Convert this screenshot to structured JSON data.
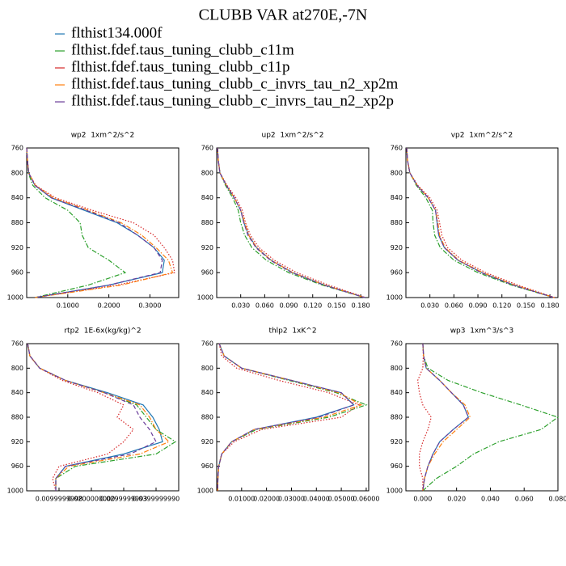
{
  "title": "CLUBB VAR at270E,-7N",
  "legend": [
    {
      "name": "flthist134.000f",
      "color": "#1f77b4",
      "style": "solid"
    },
    {
      "name": "flthist.fdef.taus_tuning_clubb_c11m",
      "color": "#2ca02c",
      "style": "dashdot"
    },
    {
      "name": "flthist.fdef.taus_tuning_clubb_c11p",
      "color": "#d62728",
      "style": "dotted"
    },
    {
      "name": "flthist.fdef.taus_tuning_clubb_c_invrs_tau_n2_xp2m",
      "color": "#ff7f0e",
      "style": "dashdot"
    },
    {
      "name": "flthist.fdef.taus_tuning_clubb_c_invrs_tau_n2_xp2p",
      "color": "#6a3d9a",
      "style": "dashed"
    }
  ],
  "chart_data": [
    {
      "type": "line",
      "title": "wp2  1xm^2/s^2",
      "y_inverted": true,
      "ylim": [
        760,
        1000
      ],
      "yticks": [
        760,
        800,
        840,
        880,
        920,
        960,
        1000
      ],
      "xlim": [
        0,
        0.37
      ],
      "xticks": [
        {
          "value": 0.1,
          "label": "0.1000"
        },
        {
          "value": 0.2,
          "label": "0.2000"
        },
        {
          "value": 0.3,
          "label": "0.3000"
        }
      ],
      "y": [
        760,
        780,
        800,
        820,
        840,
        860,
        880,
        900,
        920,
        940,
        960,
        980,
        1000
      ],
      "series": [
        {
          "values": [
            0,
            0.002,
            0.005,
            0.02,
            0.06,
            0.14,
            0.22,
            0.27,
            0.31,
            0.335,
            0.33,
            0.2,
            0.02
          ]
        },
        {
          "values": [
            0,
            0.002,
            0.004,
            0.015,
            0.045,
            0.1,
            0.13,
            0.135,
            0.15,
            0.2,
            0.24,
            0.15,
            0.02
          ]
        },
        {
          "values": [
            0,
            0.002,
            0.005,
            0.022,
            0.07,
            0.16,
            0.26,
            0.31,
            0.335,
            0.355,
            0.36,
            0.22,
            0.02
          ]
        },
        {
          "values": [
            0,
            0.002,
            0.005,
            0.021,
            0.065,
            0.15,
            0.23,
            0.28,
            0.315,
            0.345,
            0.355,
            0.23,
            0.02
          ]
        },
        {
          "values": [
            0,
            0.002,
            0.005,
            0.02,
            0.06,
            0.145,
            0.225,
            0.27,
            0.31,
            0.33,
            0.325,
            0.2,
            0.02
          ]
        }
      ]
    },
    {
      "type": "line",
      "title": "up2  1xm^2/s^2",
      "y_inverted": true,
      "ylim": [
        760,
        1000
      ],
      "yticks": [
        760,
        800,
        840,
        880,
        920,
        960,
        1000
      ],
      "xlim": [
        0,
        0.19
      ],
      "xticks": [
        {
          "value": 0.03,
          "label": "0.030"
        },
        {
          "value": 0.06,
          "label": "0.060"
        },
        {
          "value": 0.09,
          "label": "0.090"
        },
        {
          "value": 0.12,
          "label": "0.120"
        },
        {
          "value": 0.15,
          "label": "0.150"
        },
        {
          "value": 0.18,
          "label": "0.180"
        }
      ],
      "y": [
        760,
        780,
        800,
        820,
        840,
        860,
        880,
        900,
        920,
        940,
        960,
        980,
        1000
      ],
      "series": [
        {
          "values": [
            0.001,
            0.002,
            0.004,
            0.012,
            0.022,
            0.03,
            0.034,
            0.04,
            0.05,
            0.068,
            0.095,
            0.135,
            0.185
          ]
        },
        {
          "values": [
            0.001,
            0.002,
            0.004,
            0.011,
            0.02,
            0.027,
            0.03,
            0.035,
            0.044,
            0.062,
            0.09,
            0.132,
            0.185
          ]
        },
        {
          "values": [
            0.001,
            0.002,
            0.004,
            0.013,
            0.024,
            0.032,
            0.036,
            0.042,
            0.053,
            0.072,
            0.1,
            0.14,
            0.186
          ]
        },
        {
          "values": [
            0.001,
            0.002,
            0.004,
            0.012,
            0.022,
            0.03,
            0.035,
            0.04,
            0.05,
            0.068,
            0.095,
            0.135,
            0.185
          ]
        },
        {
          "values": [
            0.001,
            0.002,
            0.004,
            0.012,
            0.022,
            0.03,
            0.034,
            0.039,
            0.049,
            0.067,
            0.094,
            0.134,
            0.185
          ]
        }
      ]
    },
    {
      "type": "line",
      "title": "vp2  1xm^2/s^2",
      "y_inverted": true,
      "ylim": [
        760,
        1000
      ],
      "yticks": [
        760,
        800,
        840,
        880,
        920,
        960,
        1000
      ],
      "xlim": [
        0,
        0.19
      ],
      "xticks": [
        {
          "value": 0.03,
          "label": "0.030"
        },
        {
          "value": 0.06,
          "label": "0.060"
        },
        {
          "value": 0.09,
          "label": "0.090"
        },
        {
          "value": 0.12,
          "label": "0.120"
        },
        {
          "value": 0.15,
          "label": "0.150"
        },
        {
          "value": 0.18,
          "label": "0.180"
        }
      ],
      "y": [
        760,
        780,
        800,
        820,
        840,
        860,
        880,
        900,
        920,
        940,
        960,
        980,
        1000
      ],
      "series": [
        {
          "values": [
            0.001,
            0.002,
            0.005,
            0.014,
            0.028,
            0.037,
            0.039,
            0.041,
            0.048,
            0.065,
            0.095,
            0.135,
            0.185
          ]
        },
        {
          "values": [
            0.001,
            0.002,
            0.005,
            0.013,
            0.025,
            0.033,
            0.034,
            0.036,
            0.043,
            0.06,
            0.09,
            0.132,
            0.185
          ]
        },
        {
          "values": [
            0.001,
            0.002,
            0.005,
            0.015,
            0.03,
            0.039,
            0.042,
            0.045,
            0.052,
            0.07,
            0.1,
            0.14,
            0.186
          ]
        },
        {
          "values": [
            0.001,
            0.002,
            0.005,
            0.014,
            0.028,
            0.037,
            0.04,
            0.042,
            0.049,
            0.066,
            0.096,
            0.136,
            0.185
          ]
        },
        {
          "values": [
            0.001,
            0.002,
            0.005,
            0.014,
            0.028,
            0.037,
            0.039,
            0.041,
            0.048,
            0.065,
            0.094,
            0.134,
            0.185
          ]
        }
      ]
    },
    {
      "type": "line",
      "title": "rtp2  1E-6x(kg/kg)^2",
      "y_inverted": true,
      "ylim": [
        760,
        1000
      ],
      "yticks": [
        760,
        800,
        840,
        880,
        920,
        960,
        1000
      ],
      "xlim": [
        0,
        0.047
      ],
      "xticks": [
        {
          "value": 0.01,
          "label": "0.0099999998"
        },
        {
          "value": 0.02,
          "label": "0.0200000000"
        },
        {
          "value": 0.03,
          "label": "0.0299999993"
        },
        {
          "value": 0.04,
          "label": "0.0399999990"
        }
      ],
      "y": [
        760,
        780,
        800,
        820,
        840,
        860,
        880,
        900,
        920,
        940,
        960,
        980,
        1000
      ],
      "series": [
        {
          "values": [
            0.0003,
            0.001,
            0.004,
            0.012,
            0.025,
            0.036,
            0.039,
            0.041,
            0.042,
            0.03,
            0.012,
            0.009,
            0.009
          ]
        },
        {
          "values": [
            0.0003,
            0.001,
            0.004,
            0.012,
            0.024,
            0.034,
            0.037,
            0.04,
            0.046,
            0.04,
            0.015,
            0.009,
            0.009
          ]
        },
        {
          "values": [
            0.0003,
            0.001,
            0.004,
            0.011,
            0.022,
            0.03,
            0.028,
            0.033,
            0.03,
            0.025,
            0.01,
            0.008,
            0.009
          ]
        },
        {
          "values": [
            0.0003,
            0.001,
            0.004,
            0.012,
            0.024,
            0.035,
            0.038,
            0.04,
            0.044,
            0.035,
            0.013,
            0.009,
            0.009
          ]
        },
        {
          "values": [
            0.0003,
            0.001,
            0.004,
            0.012,
            0.024,
            0.033,
            0.035,
            0.038,
            0.04,
            0.032,
            0.012,
            0.009,
            0.009
          ]
        }
      ]
    },
    {
      "type": "line",
      "title": "thlp2  1xK^2",
      "y_inverted": true,
      "ylim": [
        760,
        1000
      ],
      "yticks": [
        760,
        800,
        840,
        880,
        920,
        960,
        1000
      ],
      "xlim": [
        0,
        0.061
      ],
      "xticks": [
        {
          "value": 0.01,
          "label": "0.01000"
        },
        {
          "value": 0.02,
          "label": "0.02000"
        },
        {
          "value": 0.03,
          "label": "0.03000"
        },
        {
          "value": 0.04,
          "label": "0.04000"
        },
        {
          "value": 0.05,
          "label": "0.05000"
        },
        {
          "value": 0.06,
          "label": "0.06000"
        }
      ],
      "y": [
        760,
        780,
        800,
        820,
        840,
        860,
        880,
        900,
        920,
        940,
        960,
        980,
        1000
      ],
      "series": [
        {
          "values": [
            0.001,
            0.003,
            0.01,
            0.03,
            0.05,
            0.055,
            0.04,
            0.015,
            0.006,
            0.002,
            0.0008,
            0.0005,
            0.0004
          ]
        },
        {
          "values": [
            0.001,
            0.003,
            0.01,
            0.029,
            0.048,
            0.06,
            0.045,
            0.016,
            0.006,
            0.002,
            0.0008,
            0.0005,
            0.0004
          ]
        },
        {
          "values": [
            0.001,
            0.002,
            0.008,
            0.025,
            0.045,
            0.057,
            0.05,
            0.018,
            0.007,
            0.002,
            0.0008,
            0.0005,
            0.0004
          ]
        },
        {
          "values": [
            0.001,
            0.003,
            0.01,
            0.03,
            0.049,
            0.058,
            0.043,
            0.015,
            0.006,
            0.002,
            0.0008,
            0.0005,
            0.0004
          ]
        },
        {
          "values": [
            0.001,
            0.003,
            0.01,
            0.03,
            0.05,
            0.055,
            0.041,
            0.015,
            0.006,
            0.002,
            0.0008,
            0.0005,
            0.0004
          ]
        }
      ]
    },
    {
      "type": "line",
      "title": "wp3  1xm^3/s^3",
      "y_inverted": true,
      "ylim": [
        760,
        1000
      ],
      "yticks": [
        760,
        800,
        840,
        880,
        920,
        960,
        1000
      ],
      "xlim": [
        -0.01,
        0.08
      ],
      "xticks": [
        {
          "value": 0,
          "label": "0.000"
        },
        {
          "value": 0.02,
          "label": "0.020"
        },
        {
          "value": 0.04,
          "label": "0.040"
        },
        {
          "value": 0.06,
          "label": "0.060"
        },
        {
          "value": 0.08,
          "label": "0.080"
        }
      ],
      "y": [
        760,
        780,
        800,
        820,
        840,
        860,
        880,
        900,
        920,
        940,
        960,
        980,
        1000
      ],
      "series": [
        {
          "values": [
            0,
            0.0005,
            0.002,
            0.01,
            0.017,
            0.024,
            0.027,
            0.018,
            0.01,
            0.006,
            0.003,
            0.001,
            0
          ]
        },
        {
          "values": [
            0,
            0.0005,
            0.003,
            0.015,
            0.035,
            0.058,
            0.08,
            0.07,
            0.045,
            0.03,
            0.02,
            0.008,
            0
          ]
        },
        {
          "values": [
            0,
            0.0003,
            0,
            -0.003,
            -0.002,
            0,
            0.005,
            0.003,
            0,
            -0.002,
            -0.002,
            0,
            0
          ]
        },
        {
          "values": [
            0,
            0.0005,
            0.002,
            0.01,
            0.017,
            0.025,
            0.028,
            0.02,
            0.012,
            0.007,
            0.003,
            0.001,
            0
          ]
        },
        {
          "values": [
            0,
            0.0005,
            0.002,
            0.01,
            0.017,
            0.024,
            0.027,
            0.018,
            0.01,
            0.006,
            0.003,
            0.001,
            0
          ]
        }
      ]
    }
  ]
}
